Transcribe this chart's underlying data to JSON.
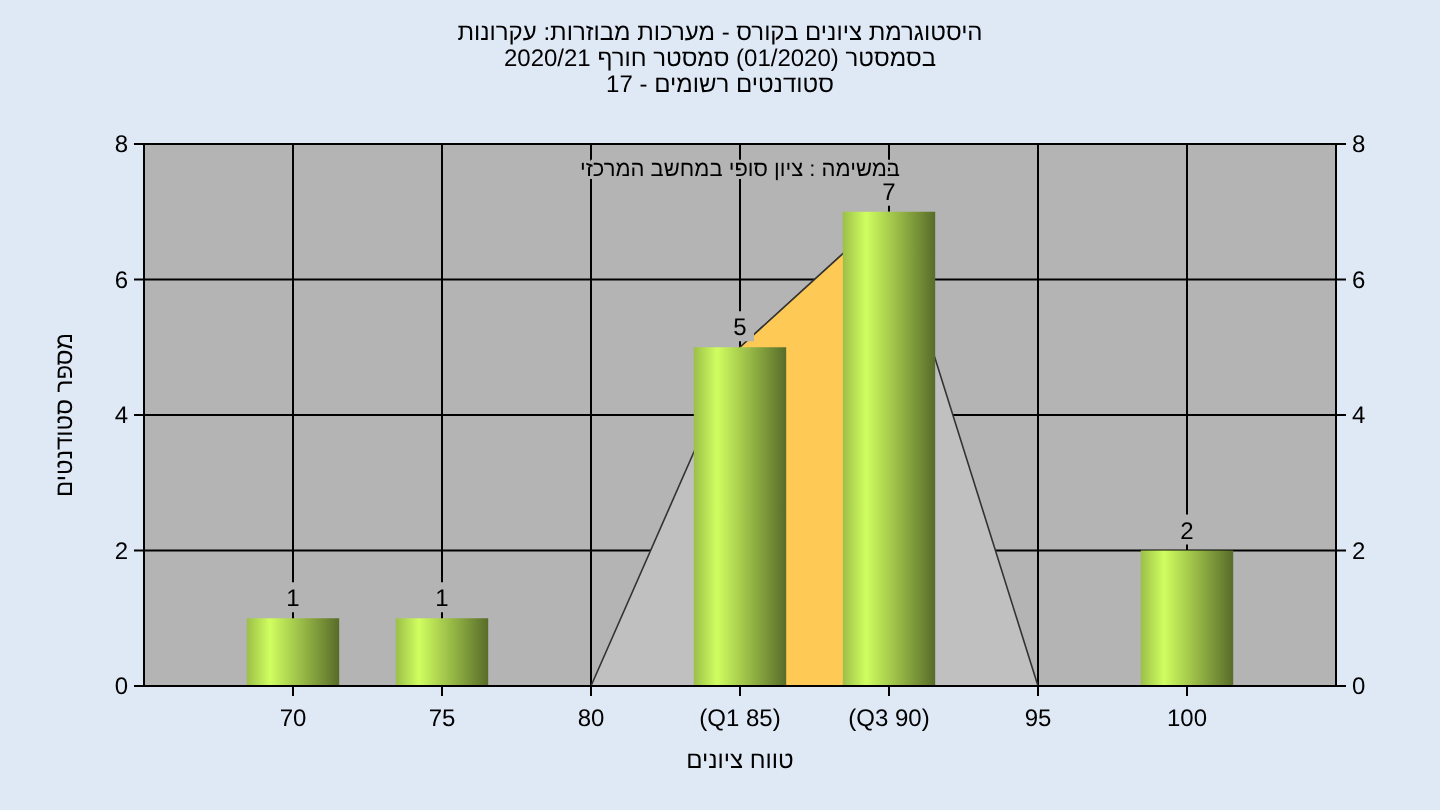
{
  "chart_data": {
    "type": "bar",
    "title": "היסטוגרמת ציונים בקורס - מערכות מבוזרות: עקרונות",
    "subtitle": "בסמסטר  (01/2020)  סמסטר חורף 2020/21\nסטודנטים רשומים - 17",
    "xlabel": "טווח ציונים",
    "ylabel": "מספר סטודנטים",
    "annotations": [
      "במשימה : ציון סופי במחשב המרכזי"
    ],
    "categories": [
      "70",
      "75",
      "80",
      "(Q1 85)",
      "(Q3 90)",
      "95",
      "100"
    ],
    "series": [
      {
        "type": "area",
        "color": "#c0c0c0",
        "values": [
          null,
          null,
          0,
          5,
          7,
          0,
          null
        ]
      },
      {
        "type": "area",
        "color": "#ffc955",
        "values": [
          null,
          null,
          null,
          5,
          7,
          null,
          null
        ]
      },
      {
        "color": "#9cbf48",
        "values": [
          1,
          1,
          0,
          5,
          7,
          0,
          2
        ],
        "value_labels": [
          "1",
          "1",
          null,
          "5",
          "7",
          null,
          "2"
        ]
      }
    ],
    "ylim": [
      0,
      8
    ],
    "yticks": [
      0,
      2,
      4,
      6,
      8
    ],
    "y2lim": [
      0,
      8
    ],
    "y2ticks": [
      0,
      2,
      4,
      6,
      8
    ],
    "grid": true
  }
}
